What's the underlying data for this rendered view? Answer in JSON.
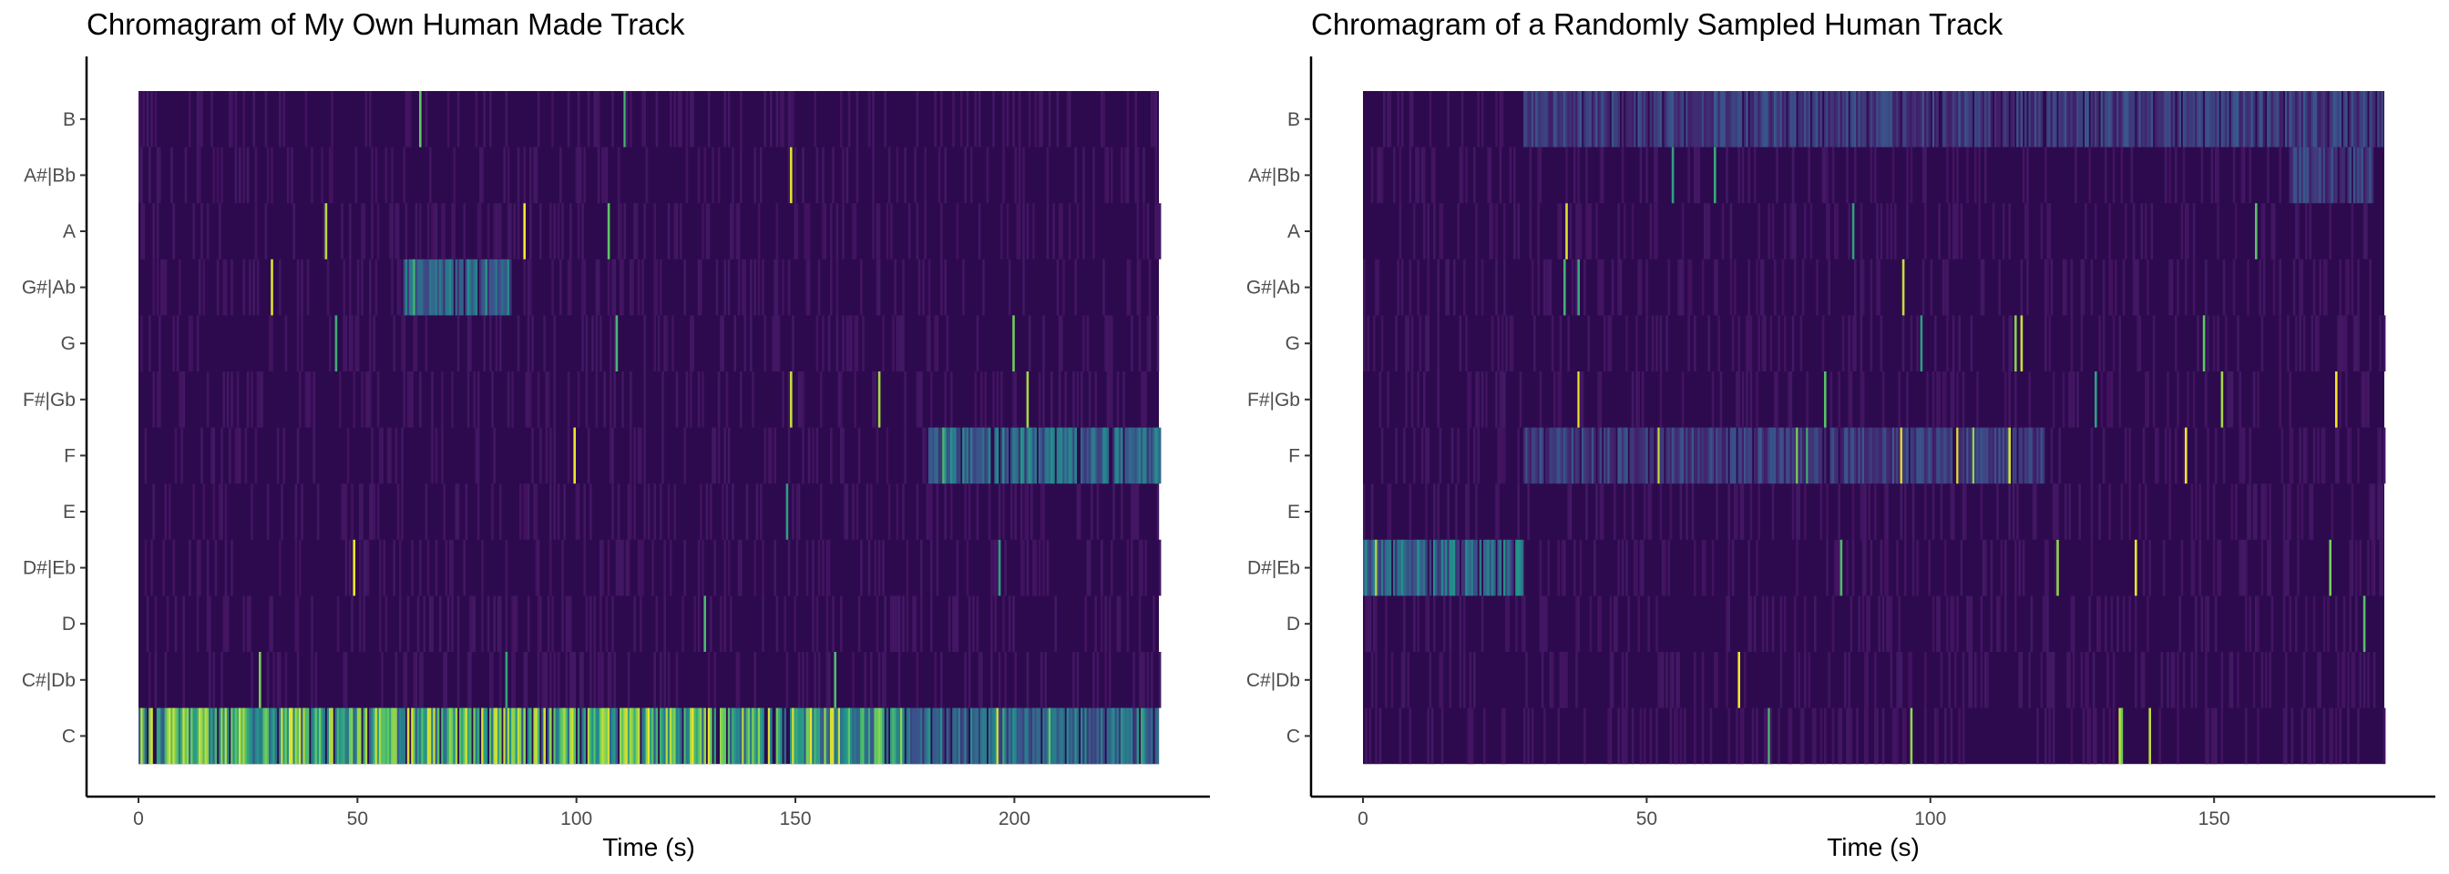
{
  "chart_data": [
    {
      "type": "heatmap",
      "title": "Chromagram of My Own Human Made Track",
      "xlabel": "Time (s)",
      "ylabel": "",
      "xlim": [
        0,
        233
      ],
      "xticks": [
        0,
        50,
        100,
        150,
        200
      ],
      "pitch_classes": [
        "C",
        "C#|Db",
        "D",
        "D#|Eb",
        "E",
        "F",
        "F#|Gb",
        "G",
        "G#|Ab",
        "A",
        "A#|Bb",
        "B"
      ],
      "colorscale": [
        "#440154",
        "#3b528b",
        "#21918c",
        "#5ec962",
        "#fde725"
      ],
      "background_color": "#2d0a4e",
      "strong_bands": [
        {
          "pitch": "C",
          "from": 0,
          "to": 175,
          "level": "high"
        },
        {
          "pitch": "C",
          "from": 175,
          "to": 233,
          "level": "medium"
        },
        {
          "pitch": "F",
          "from": 180,
          "to": 233,
          "level": "medium"
        },
        {
          "pitch": "G#|Ab",
          "from": 60,
          "to": 85,
          "level": "medium"
        }
      ],
      "grid": false,
      "legend": "none"
    },
    {
      "type": "heatmap",
      "title": "Chromagram of a Randomly Sampled Human Track",
      "xlabel": "Time (s)",
      "ylabel": "",
      "xlim": [
        0,
        180
      ],
      "xticks": [
        0,
        50,
        100,
        150
      ],
      "pitch_classes": [
        "C",
        "C#|Db",
        "D",
        "D#|Eb",
        "E",
        "F",
        "F#|Gb",
        "G",
        "G#|Ab",
        "A",
        "A#|Bb",
        "B"
      ],
      "colorscale": [
        "#440154",
        "#3b528b",
        "#21918c",
        "#5ec962",
        "#fde725"
      ],
      "background_color": "#2d0a4e",
      "strong_bands": [
        {
          "pitch": "D#|Eb",
          "from": 0,
          "to": 28,
          "level": "medium"
        },
        {
          "pitch": "B",
          "from": 28,
          "to": 180,
          "level": "low"
        },
        {
          "pitch": "F",
          "from": 28,
          "to": 120,
          "level": "low"
        },
        {
          "pitch": "A#|Bb",
          "from": 163,
          "to": 178,
          "level": "low"
        }
      ],
      "grid": false,
      "legend": "none"
    }
  ]
}
